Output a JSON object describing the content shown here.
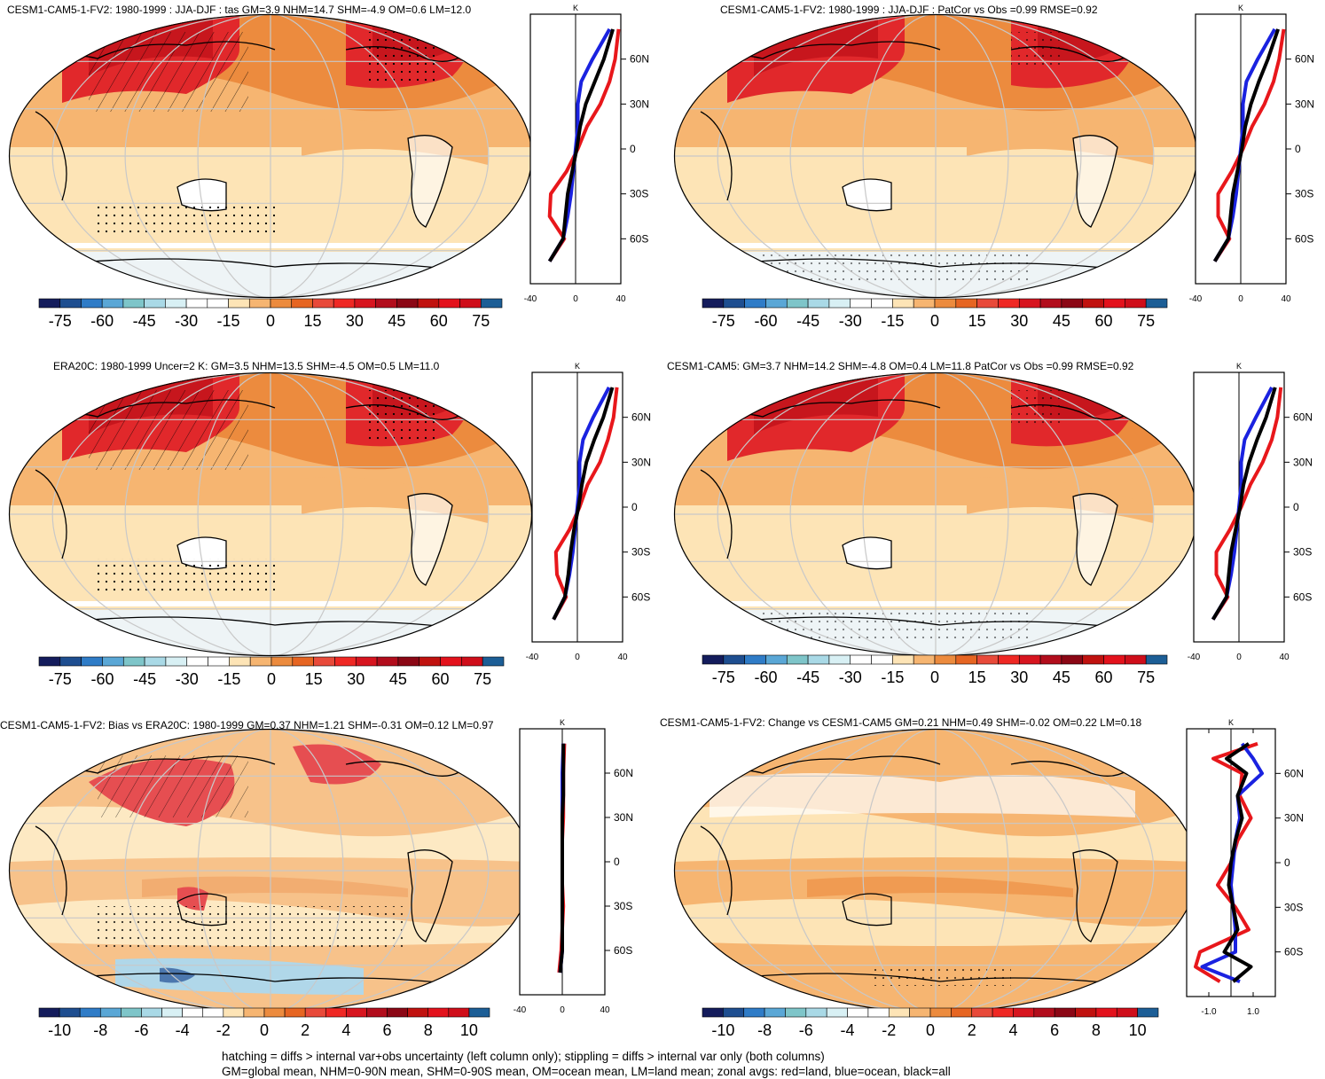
{
  "palette": [
    "#11175e",
    "#25599d",
    "#3d86c8",
    "#6fb6d8",
    "#9fcfe5",
    "#cdebf0",
    "#eef8f8",
    "#ffffff",
    "#fde4b6",
    "#f6b571",
    "#ec8b3e",
    "#e75a2d",
    "#e1282b",
    "#c7161d",
    "#9e0b17",
    "#6e0210",
    "#f0242a",
    "#c0392b",
    "#1c5e96"
  ],
  "legend_ticks_main": [
    "-75",
    "-60",
    "-45",
    "-30",
    "-15",
    "0",
    "15",
    "30",
    "45",
    "60",
    "75"
  ],
  "legend_ticks_diff": [
    "-10",
    "-8",
    "-6",
    "-4",
    "-2",
    "0",
    "2",
    "4",
    "6",
    "8",
    "10"
  ],
  "zonal_axis_ticks": [
    "-40",
    "0",
    "40"
  ],
  "zonal_axis_ticks_change": [
    "-1.0",
    "1.0"
  ],
  "lat_ticks": [
    "60N",
    "30N",
    "0",
    "30S",
    "60S"
  ],
  "unit": "K",
  "panels": [
    {
      "title": "CESM1-CAM5-1-FV2: 1980-1999 : JJA-DJF : tas GM=3.9 NHM=14.7 SHM=-4.9 OM=0.6 LM=12.0"
    },
    {
      "title": "CESM1-CAM5-1-FV2: 1980-1999 : JJA-DJF : PatCor vs Obs =0.99 RMSE=0.92"
    },
    {
      "title": "ERA20C: 1980-1999 Uncer=2 K: GM=3.5 NHM=13.5 SHM=-4.5 OM=0.5 LM=11.0"
    },
    {
      "title": "CESM1-CAM5: GM=3.7 NHM=14.2 SHM=-4.8 OM=0.4 LM=11.8 PatCor vs Obs =0.99 RMSE=0.92"
    },
    {
      "title": "CESM1-CAM5-1-FV2: Bias vs ERA20C: 1980-1999 GM=0.37 NHM=1.21 SHM=-0.31 OM=0.12 LM=0.97"
    },
    {
      "title": "CESM1-CAM5-1-FV2: Change vs CESM1-CAM5 GM=0.21 NHM=0.49 SHM=-0.02 OM=0.22 LM=0.18"
    }
  ],
  "footer": {
    "line1": "hatching = diffs > internal var+obs uncertainty (left column only); stippling = diffs > internal var only (both columns)",
    "line2": "GM=global mean, NHM=0-90N mean, SHM=0-90S mean, OM=ocean mean, LM=land mean; zonal avgs: red=land, blue=ocean, black=all"
  },
  "chart_data": [
    {
      "type": "line",
      "title": "CESM1-CAM5-1-FV2: 1980-1999 : JJA-DJF : tas GM=3.9 NHM=14.7 SHM=-4.9 OM=0.6 LM=12.0",
      "ylabel": "",
      "xlabel": "K",
      "xlim": [
        -40,
        40
      ],
      "lat": [
        80,
        60,
        45,
        30,
        15,
        0,
        -15,
        -30,
        -45,
        -60,
        -75
      ],
      "series": [
        {
          "name": "land",
          "values": [
            38,
            35,
            30,
            22,
            10,
            2,
            -8,
            -22,
            -23,
            -10,
            -23
          ]
        },
        {
          "name": "ocean",
          "values": [
            30,
            15,
            5,
            2,
            2,
            0,
            -2,
            -4,
            -7,
            -11,
            -23
          ]
        },
        {
          "name": "all",
          "values": [
            33,
            25,
            17,
            9,
            4,
            1,
            -3,
            -7,
            -9,
            -11,
            -23
          ]
        }
      ]
    },
    {
      "type": "line",
      "title": "CESM1-CAM5-1-FV2: 1980-1999 : JJA-DJF : PatCor vs Obs =0.99 RMSE=0.92",
      "xlabel": "K",
      "xlim": [
        -40,
        40
      ],
      "lat": [
        80,
        60,
        45,
        30,
        15,
        0,
        -15,
        -30,
        -45,
        -60,
        -75
      ],
      "series": [
        {
          "name": "land",
          "values": [
            38,
            34,
            29,
            21,
            10,
            2,
            -8,
            -20,
            -20,
            -10,
            -23
          ]
        },
        {
          "name": "ocean",
          "values": [
            30,
            15,
            5,
            2,
            2,
            0,
            -2,
            -4,
            -7,
            -11,
            -23
          ]
        },
        {
          "name": "all",
          "values": [
            33,
            24,
            16,
            9,
            4,
            1,
            -3,
            -7,
            -9,
            -11,
            -23
          ]
        }
      ]
    },
    {
      "type": "line",
      "title": "ERA20C: 1980-1999 Uncer=2 K: GM=3.5 NHM=13.5 SHM=-4.5 OM=0.5 LM=11.0",
      "xlabel": "K",
      "xlim": [
        -40,
        40
      ],
      "lat": [
        80,
        60,
        45,
        30,
        15,
        0,
        -15,
        -30,
        -45,
        -60,
        -75
      ],
      "series": [
        {
          "name": "land",
          "values": [
            35,
            32,
            27,
            20,
            9,
            2,
            -7,
            -19,
            -18,
            -10,
            -21
          ]
        },
        {
          "name": "ocean",
          "values": [
            28,
            14,
            5,
            2,
            2,
            0,
            -2,
            -4,
            -7,
            -11,
            -21
          ]
        },
        {
          "name": "all",
          "values": [
            31,
            23,
            15,
            8,
            4,
            1,
            -3,
            -6,
            -8,
            -11,
            -21
          ]
        }
      ]
    },
    {
      "type": "line",
      "title": "CESM1-CAM5: GM=3.7 NHM=14.2 SHM=-4.8 OM=0.4 LM=11.8 PatCor vs Obs =0.99 RMSE=0.92",
      "xlabel": "K",
      "xlim": [
        -40,
        40
      ],
      "lat": [
        80,
        60,
        45,
        30,
        15,
        0,
        -15,
        -30,
        -45,
        -60,
        -75
      ],
      "series": [
        {
          "name": "land",
          "values": [
            37,
            34,
            29,
            21,
            10,
            2,
            -8,
            -20,
            -20,
            -10,
            -23
          ]
        },
        {
          "name": "ocean",
          "values": [
            29,
            15,
            5,
            2,
            2,
            0,
            -2,
            -4,
            -7,
            -11,
            -23
          ]
        },
        {
          "name": "all",
          "values": [
            32,
            24,
            16,
            9,
            4,
            1,
            -3,
            -7,
            -9,
            -11,
            -23
          ]
        }
      ]
    },
    {
      "type": "line",
      "title": "CESM1-CAM5-1-FV2: Bias vs ERA20C: 1980-1999 GM=0.37 NHM=1.21 SHM=-0.31 OM=0.12 LM=0.97",
      "xlabel": "K",
      "xlim": [
        -40,
        40
      ],
      "lat": [
        80,
        60,
        45,
        30,
        15,
        0,
        -15,
        -30,
        -45,
        -60,
        -75
      ],
      "series": [
        {
          "name": "land",
          "values": [
            2,
            1,
            1,
            1,
            0,
            0,
            0,
            1,
            0,
            -1,
            -3
          ]
        },
        {
          "name": "ocean",
          "values": [
            1,
            0,
            0,
            0,
            0,
            0,
            0,
            0,
            0,
            0,
            -2
          ]
        },
        {
          "name": "all",
          "values": [
            1,
            1,
            1,
            0,
            0,
            0,
            0,
            0,
            0,
            0,
            -2
          ]
        }
      ]
    },
    {
      "type": "line",
      "title": "CESM1-CAM5-1-FV2: Change vs CESM1-CAM5 GM=0.21 NHM=0.49 SHM=-0.02 OM=0.22 LM=0.18",
      "xlabel": "K",
      "xlim": [
        -2,
        2
      ],
      "lat": [
        80,
        70,
        60,
        45,
        30,
        15,
        0,
        -15,
        -30,
        -45,
        -60,
        -70,
        -80
      ],
      "series": [
        {
          "name": "land",
          "values": [
            1.2,
            -0.8,
            0.5,
            0.4,
            0.9,
            0.3,
            0.0,
            -0.6,
            0.2,
            0.8,
            -1.4,
            -1.6,
            -0.5
          ]
        },
        {
          "name": "ocean",
          "values": [
            0.5,
            1.0,
            1.4,
            0.3,
            0.4,
            0.2,
            0.1,
            0.0,
            0.1,
            0.2,
            0.2,
            -1.3,
            0.4
          ]
        },
        {
          "name": "all",
          "values": [
            0.8,
            -0.2,
            0.7,
            0.3,
            0.5,
            0.2,
            0.0,
            -0.1,
            0.1,
            0.3,
            -0.3,
            0.9,
            0.1
          ]
        }
      ]
    }
  ]
}
